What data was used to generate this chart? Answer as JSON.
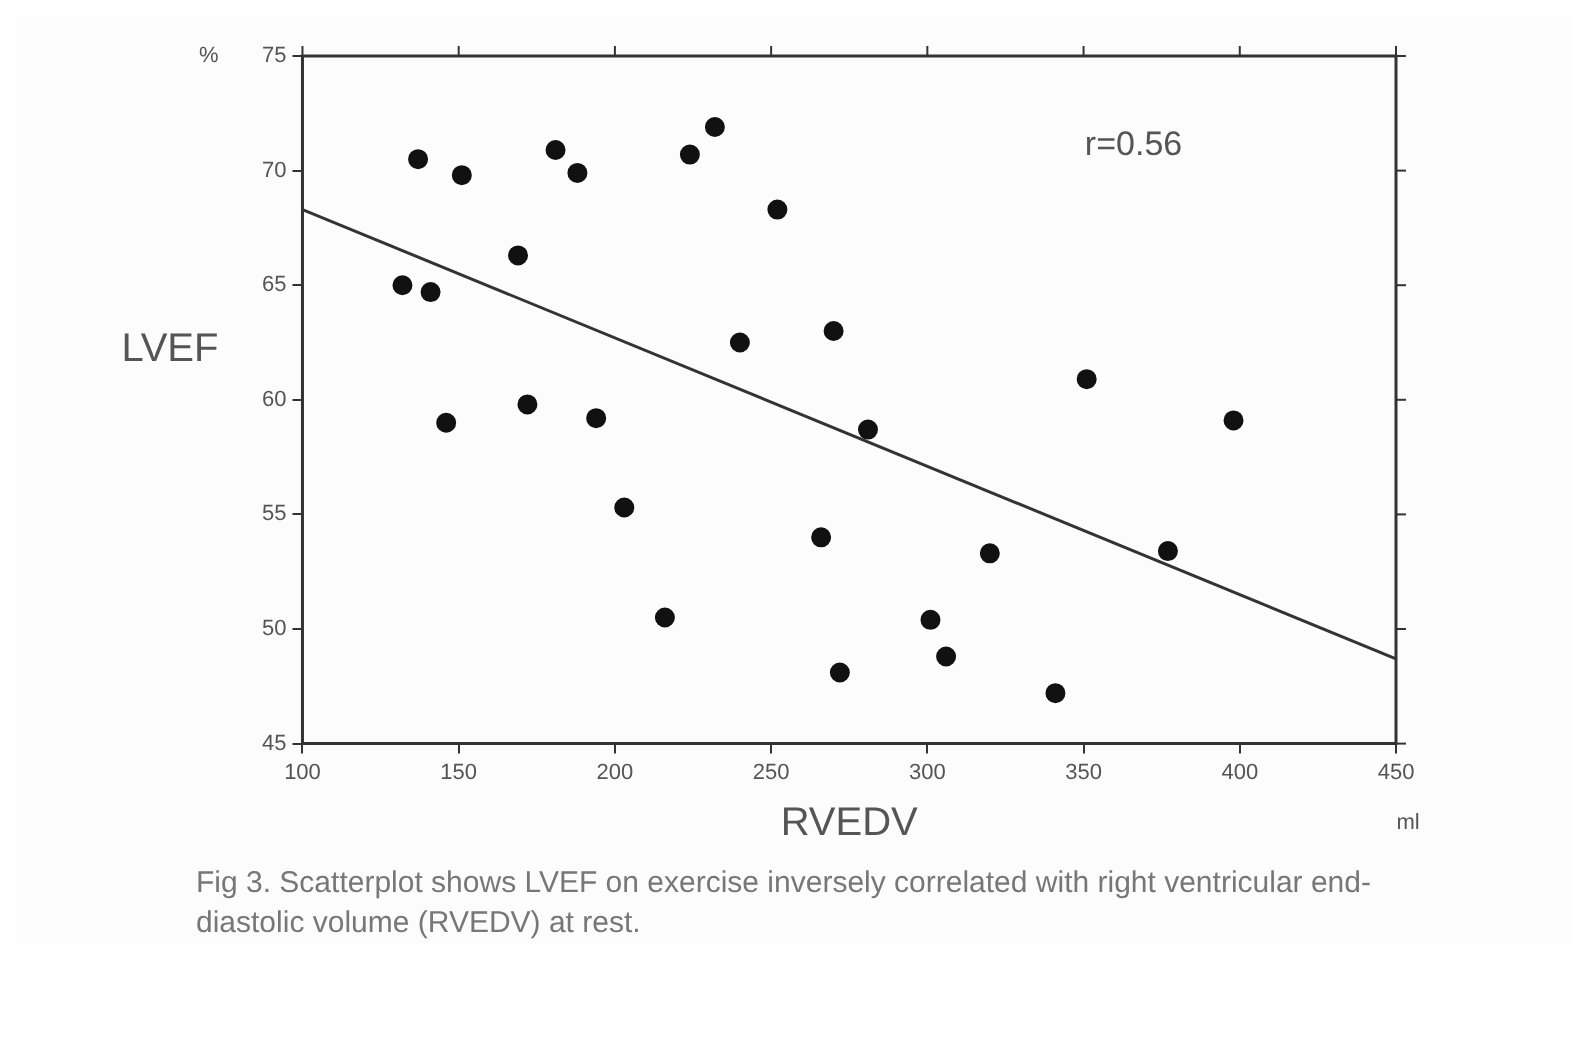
{
  "chart_data": {
    "type": "scatter",
    "xlabel": "RVEDV",
    "ylabel": "LVEF",
    "xlim": [
      100,
      450
    ],
    "xticks": [
      100,
      150,
      200,
      250,
      300,
      350,
      400,
      450
    ],
    "ylim": [
      45,
      75
    ],
    "yticks": [
      45,
      50,
      55,
      60,
      65,
      70,
      75
    ],
    "grid": false,
    "legend": false,
    "marker": "circle",
    "annotations": [
      "r=0.56",
      "%",
      "ml",
      "Fig 3.   Scatterplot shows LVEF on exercise inversely correlated with right ventricular end-diastolic volume (RVEDV) at rest."
    ],
    "series": [
      {
        "type": "scatter",
        "color": "#111111",
        "x": [
          132,
          137,
          141,
          151,
          146,
          169,
          172,
          181,
          188,
          194,
          203,
          216,
          224,
          232,
          252,
          240,
          270,
          266,
          272,
          281,
          301,
          306,
          320,
          341,
          351,
          377,
          398
        ],
        "values": [
          65.0,
          70.5,
          64.7,
          69.8,
          59.0,
          66.3,
          59.8,
          70.9,
          69.9,
          59.2,
          55.3,
          50.5,
          70.7,
          71.9,
          68.3,
          62.5,
          63.0,
          54.0,
          48.1,
          58.7,
          50.4,
          48.8,
          53.3,
          47.2,
          60.9,
          53.4,
          59.1
        ]
      },
      {
        "type": "line",
        "color": "#333333",
        "line_style": "solid",
        "marker": "none",
        "x": [
          100,
          450
        ],
        "values": [
          68.3,
          48.7
        ]
      }
    ]
  }
}
